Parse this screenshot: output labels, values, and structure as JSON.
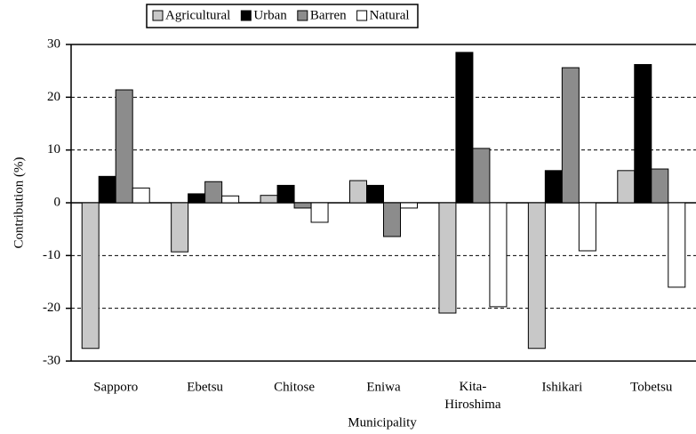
{
  "chart_data": {
    "type": "bar",
    "xlabel": "Municipality",
    "ylabel": "Contribution (%)",
    "categories": [
      "Sapporo",
      "Ebetsu",
      "Chitose",
      "Eniwa",
      "Kita-Hiroshima",
      "Ishikari",
      "Tobetsu"
    ],
    "series": [
      {
        "name": "Agricultural",
        "color": "#c8c8c8",
        "values": [
          -27.6,
          -9.3,
          1.4,
          4.2,
          -20.9,
          -27.6,
          6.1
        ]
      },
      {
        "name": "Urban",
        "color": "#000000",
        "values": [
          5.0,
          1.7,
          3.3,
          3.3,
          28.5,
          6.1,
          26.2
        ]
      },
      {
        "name": "Barren",
        "color": "#8c8c8c",
        "values": [
          21.4,
          4.0,
          -1.0,
          -6.4,
          10.3,
          25.6,
          6.4
        ]
      },
      {
        "name": "Natural",
        "color": "#ffffff",
        "values": [
          2.8,
          1.3,
          -3.7,
          -1.0,
          -19.7,
          -9.1,
          -16.0
        ]
      }
    ],
    "ylim": [
      -30,
      30
    ],
    "yticks": [
      -30,
      -20,
      -10,
      0,
      10,
      20,
      30
    ],
    "grid": true,
    "legend": "top"
  }
}
